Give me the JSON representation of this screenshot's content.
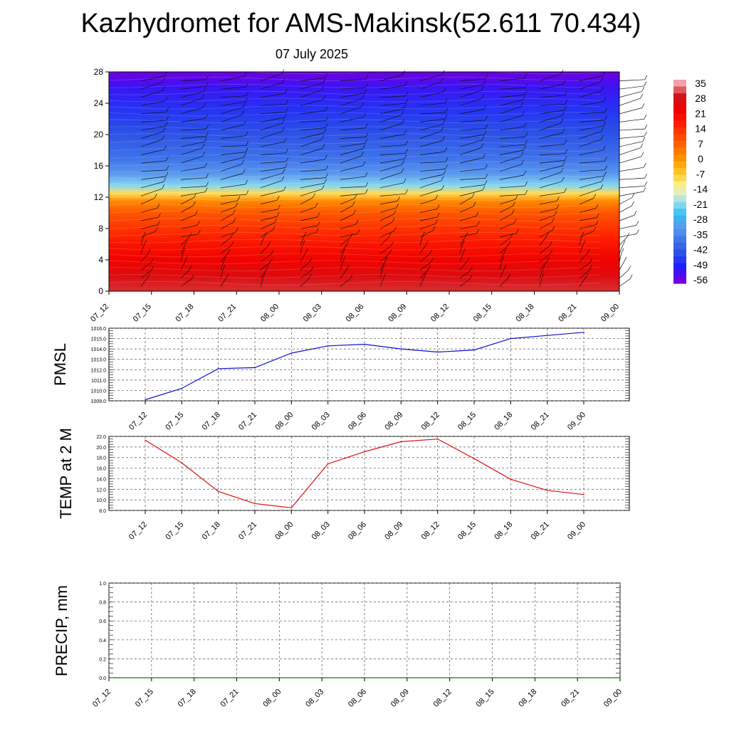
{
  "header": {
    "title": "Kazhydromet for AMS-Makinsk(52.611 70.434)",
    "subtitle": "07 July 2025"
  },
  "colors": {
    "pmsl_line": "#1010cc",
    "temp_line": "#dd1111",
    "precip_line": "#117711",
    "colormap": [
      "#6f00e0",
      "#1e1eff",
      "#2b4fe6",
      "#3f74ea",
      "#5d9aee",
      "#2fc0f0",
      "#a8e0f0",
      "#fff5a0",
      "#ffd030",
      "#ffa000",
      "#ff7000",
      "#ff4400",
      "#ff1a00",
      "#ee0000",
      "#d0151a",
      "#f4a0a8"
    ]
  },
  "chart_data": [
    {
      "type": "heatmap",
      "title": "",
      "xlabel": "",
      "ylabel": "",
      "x_ticks": [
        "07_12",
        "07_15",
        "07_18",
        "07_21",
        "08_00",
        "08_03",
        "08_06",
        "08_09",
        "08_12",
        "08_15",
        "08_18",
        "08_21",
        "09_00"
      ],
      "y_ticks": [
        "0",
        "4",
        "8",
        "12",
        "16",
        "20",
        "24",
        "28"
      ],
      "ylim": [
        0,
        28
      ],
      "overlay": "wind barbs",
      "vertical_profile": [
        {
          "level": 0,
          "value": 30
        },
        {
          "level": 2,
          "value": 26
        },
        {
          "level": 4,
          "value": 22
        },
        {
          "level": 6,
          "value": 18
        },
        {
          "level": 8,
          "value": 13
        },
        {
          "level": 10,
          "value": 8
        },
        {
          "level": 11.5,
          "value": 1
        },
        {
          "level": 12.5,
          "value": -10
        },
        {
          "level": 13.5,
          "value": -22
        },
        {
          "level": 15,
          "value": -33
        },
        {
          "level": 17,
          "value": -39
        },
        {
          "level": 20,
          "value": -44
        },
        {
          "level": 23,
          "value": -48
        },
        {
          "level": 26,
          "value": -53
        },
        {
          "level": 28,
          "value": -57
        }
      ],
      "colorbar": {
        "labels": [
          "35",
          "28",
          "21",
          "14",
          "7",
          "0",
          "-7",
          "-14",
          "-21",
          "-28",
          "-35",
          "-42",
          "-49",
          "-56"
        ]
      }
    },
    {
      "type": "line",
      "ylabel": "PMSL",
      "ylim": [
        1009,
        1016
      ],
      "y_ticks": [
        "1009.0",
        "1010.0",
        "1011.0",
        "1012.0",
        "1013.0",
        "1014.0",
        "1015.0",
        "1016.0"
      ],
      "x_ticks": [
        "07_12",
        "07_15",
        "07_18",
        "07_21",
        "08_00",
        "08_03",
        "08_06",
        "08_09",
        "08_12",
        "08_15",
        "08_18",
        "08_21",
        "09_00"
      ],
      "series": [
        {
          "values": [
            1009.1,
            1010.2,
            1012.1,
            1012.2,
            1013.6,
            1014.3,
            1014.45,
            1014.0,
            1013.7,
            1013.9,
            1015.0,
            1015.3,
            1015.6
          ]
        }
      ]
    },
    {
      "type": "line",
      "ylabel": "TEMP at 2 M",
      "ylim": [
        8,
        22
      ],
      "y_ticks": [
        "8.0",
        "10.0",
        "12.0",
        "14.0",
        "16.0",
        "18.0",
        "20.0",
        "22.0"
      ],
      "x_ticks": [
        "07_12",
        "07_15",
        "07_18",
        "07_21",
        "08_00",
        "08_03",
        "08_06",
        "08_09",
        "08_12",
        "08_15",
        "08_18",
        "08_21",
        "09_00"
      ],
      "series": [
        {
          "values": [
            21.3,
            17.0,
            11.6,
            9.3,
            8.5,
            16.8,
            19.1,
            21.0,
            21.5,
            17.8,
            13.9,
            11.8,
            11.0
          ]
        }
      ]
    },
    {
      "type": "line",
      "ylabel": "PRECIP, mm",
      "ylim": [
        0,
        1
      ],
      "y_ticks": [
        "0.0",
        "0.2",
        "0.4",
        "0.6",
        "0.8",
        "1.0"
      ],
      "x_ticks": [
        "07_12",
        "07_15",
        "07_18",
        "07_21",
        "08_00",
        "08_03",
        "08_06",
        "08_09",
        "08_12",
        "08_15",
        "08_18",
        "08_21",
        "09_00"
      ],
      "series": [
        {
          "values": [
            0,
            0,
            0,
            0,
            0,
            0,
            0,
            0,
            0,
            0,
            0,
            0,
            0
          ]
        }
      ]
    }
  ]
}
